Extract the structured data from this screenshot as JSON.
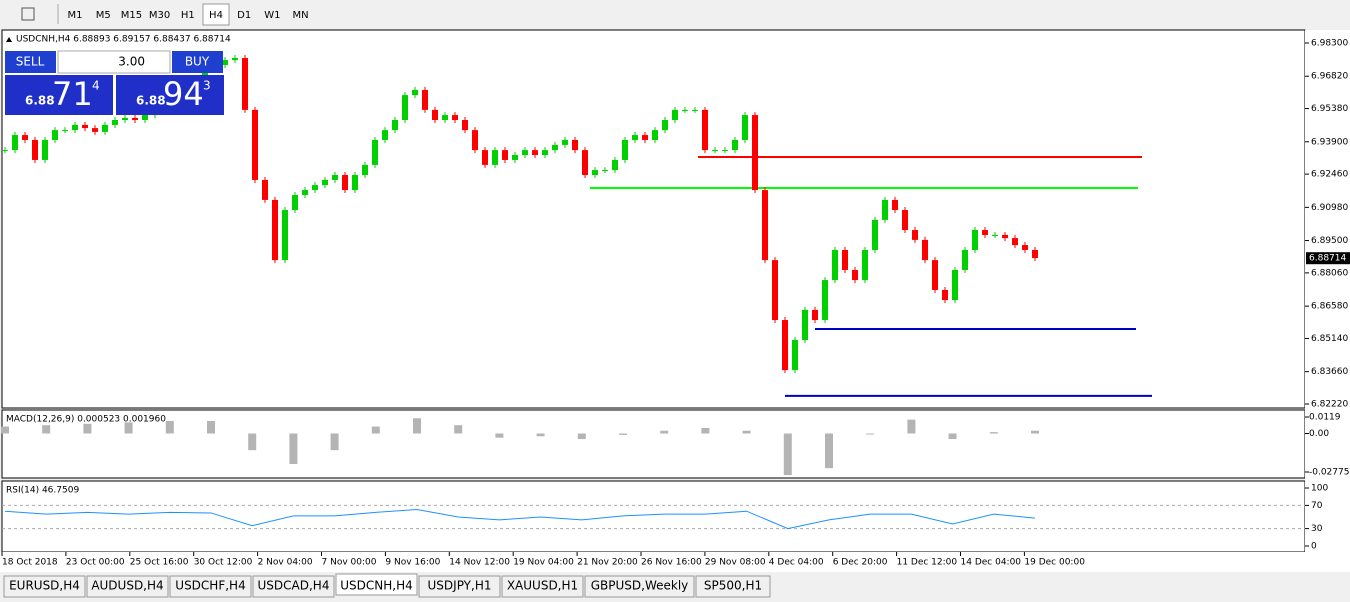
{
  "toolbar": {
    "timeframes": [
      "M1",
      "M5",
      "M15",
      "M30",
      "H1",
      "H4",
      "D1",
      "W1",
      "MN"
    ],
    "active": "H4"
  },
  "trade_panel": {
    "sell": "SELL",
    "buy": "BUY",
    "volume": "3.00",
    "bid": {
      "big": "6.88",
      "main": "71",
      "small": "4"
    },
    "ask": {
      "big": "6.88",
      "main": "94",
      "small": "3"
    }
  },
  "chart_data": {
    "type": "candlestick",
    "header": "USDCNH,H4  6.88893 6.89157 6.88437 6.88714",
    "closes": [
      6.9353,
      6.942,
      6.9398,
      6.9309,
      6.9398,
      6.9442,
      6.9442,
      6.9465,
      6.9451,
      6.9434,
      6.9465,
      6.9487,
      6.9496,
      6.9487,
      6.9509,
      6.9523,
      6.954,
      6.9576,
      6.9621,
      6.9665,
      6.971,
      6.9732,
      6.9754,
      6.9763,
      6.9532,
      6.922,
      6.9131,
      6.8863,
      6.9086,
      6.9153,
      6.9175,
      6.9197,
      6.922,
      6.9242,
      6.9175,
      6.9242,
      6.9287,
      6.9398,
      6.9442,
      6.9487,
      6.9598,
      6.9621,
      6.9532,
      6.9487,
      6.9509,
      6.9487,
      6.9442,
      6.9353,
      6.9287,
      6.9353,
      6.9309,
      6.9331,
      6.9353,
      6.9331,
      6.9353,
      6.9376,
      6.9398,
      6.9353,
      6.9242,
      6.9264,
      6.9264,
      6.9309,
      6.9398,
      6.942,
      6.9398,
      6.9442,
      6.9487,
      6.9532,
      6.9532,
      6.9532,
      6.9353,
      6.9353,
      6.9353,
      6.9398,
      6.9509,
      6.9175,
      6.8863,
      6.8596,
      6.8373,
      6.8507,
      6.8641,
      6.8596,
      6.8774,
      6.8908,
      6.8819,
      6.8774,
      6.8908,
      6.9042,
      6.9131,
      6.9086,
      6.8997,
      6.8953,
      6.8863,
      6.873,
      6.8685,
      6.8819,
      6.8908,
      6.8997,
      6.8975,
      6.8975,
      6.8961,
      6.893,
      6.8908,
      6.8872
    ],
    "up_color": "#00d000",
    "down_color": "#ff0000",
    "ylim": [
      6.8222,
      6.983
    ],
    "yticks": [
      {
        "value": 6.983,
        "label": "6.98300"
      },
      {
        "value": 6.9682,
        "label": "6.96820"
      },
      {
        "value": 6.9538,
        "label": "6.95380"
      },
      {
        "value": 6.939,
        "label": "6.93900"
      },
      {
        "value": 6.9246,
        "label": "6.92460"
      },
      {
        "value": 6.9098,
        "label": "6.90980"
      },
      {
        "value": 6.895,
        "label": "6.89500"
      },
      {
        "value": 6.8806,
        "label": "6.88060"
      },
      {
        "value": 6.8658,
        "label": "6.86580"
      },
      {
        "value": 6.8514,
        "label": "6.85140"
      },
      {
        "value": 6.8366,
        "label": "6.83660"
      },
      {
        "value": 6.8222,
        "label": "6.82220"
      }
    ],
    "current_price": 6.88714,
    "levels": [
      {
        "value": 6.9322,
        "color": "#ff0000"
      },
      {
        "value": 6.9184,
        "color": "#00ff00"
      },
      {
        "value": 6.8556,
        "color": "#0000c0"
      },
      {
        "value": 6.8258,
        "color": "#0000c0"
      }
    ],
    "xlabels": [
      "18 Oct 2018",
      "23 Oct 00:00",
      "25 Oct 16:00",
      "30 Oct 12:00",
      "2 Nov 04:00",
      "7 Nov 00:00",
      "9 Nov 16:00",
      "14 Nov 12:00",
      "19 Nov 04:00",
      "21 Nov 20:00",
      "26 Nov 16:00",
      "29 Nov 08:00",
      "4 Dec 04:00",
      "6 Dec 20:00",
      "11 Dec 12:00",
      "14 Dec 04:00",
      "19 Dec 00:00"
    ],
    "macd": {
      "title": "MACD(12,26,9) 0.000523 0.001960",
      "color": "#b4b4b4",
      "values": [
        0.005,
        0.006,
        0.007,
        0.008,
        0.009,
        0.009,
        -0.012,
        -0.022,
        -0.012,
        0.005,
        0.011,
        0.006,
        -0.003,
        -0.002,
        -0.004,
        -0.001,
        0.002,
        0.004,
        0.002,
        -0.03,
        -0.025,
        0.0,
        0.01,
        -0.004,
        0.001,
        0.002
      ],
      "yticks": [
        0.0119,
        {
          "value": 0,
          "label": "0.00"
        },
        -0.027754
      ]
    },
    "rsi": {
      "title": "RSI(14) 46.7509",
      "color": "#1e90ff",
      "values": [
        60,
        55,
        58,
        55,
        58,
        57,
        35,
        52,
        52,
        58,
        63,
        50,
        45,
        50,
        45,
        52,
        55,
        55,
        60,
        30,
        45,
        55,
        55,
        38,
        55,
        48
      ],
      "ylim": [
        0,
        100
      ],
      "yticks": [
        100,
        70,
        30,
        0
      ]
    }
  },
  "tabs": [
    "EURUSD,H4",
    "AUDUSD,H4",
    "USDCHF,H4",
    "USDCAD,H4",
    "USDCNH,H4",
    "USDJPY,H1",
    "XAUUSD,H1",
    "GBPUSD,Weekly",
    "SP500,H1"
  ],
  "active_tab": "USDCNH,H4"
}
